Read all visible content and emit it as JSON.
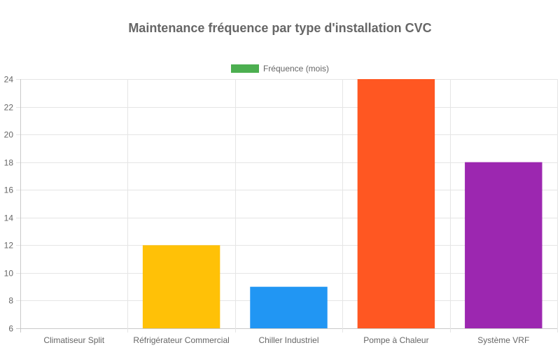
{
  "chart_data": {
    "type": "bar",
    "title": "Maintenance fréquence par type d'installation CVC",
    "categories": [
      "Climatiseur Split",
      "Réfrigérateur Commercial",
      "Chiller Industriel",
      "Pompe à Chaleur",
      "Système VRF"
    ],
    "series": [
      {
        "name": "Fréquence (mois)",
        "values": [
          6,
          12,
          9,
          24,
          18
        ],
        "colors": [
          "#4CAF50",
          "#FFC107",
          "#2196F3",
          "#FF5722",
          "#9C27B0"
        ]
      }
    ],
    "ylim": [
      6,
      24
    ],
    "yticks": [
      6,
      8,
      10,
      12,
      14,
      16,
      18,
      20,
      22,
      24
    ],
    "grid": true,
    "legend_position": "top-center",
    "legend_color": "#4CAF50"
  }
}
